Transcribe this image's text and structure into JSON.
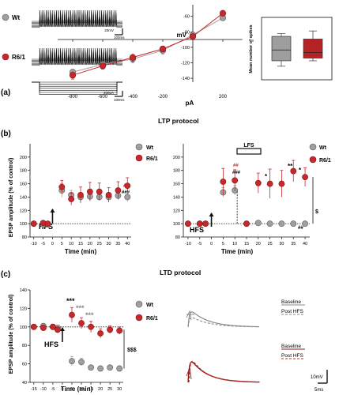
{
  "panels": {
    "a": "(a)",
    "b": "(b)",
    "c": "(c)"
  },
  "section_titles": {
    "ltp": "LTP protocol",
    "ltd": "LTD protocol"
  },
  "legend": {
    "wt": "Wt",
    "r61": "R6/1"
  },
  "colors": {
    "wt": "#a0a0a0",
    "r61": "#c8272b",
    "axis": "#111111",
    "dark_red": "#8e1a1a"
  },
  "traces": {
    "scale_top_v": "20mV",
    "scale_top_t": "100ms",
    "scale_bottom_i": "200pA",
    "scale_bottom_t": "100ms",
    "ltd_scale_v": "10mV",
    "ltd_scale_t": "5ms",
    "legend_baseline": "Baseline",
    "legend_post": "Post HFS"
  },
  "markers": {
    "hfs": "HFS",
    "lfs": "LFS"
  },
  "chart_data": [
    {
      "id": "iv",
      "type": "line",
      "xlabel": "pA",
      "ylabel": "mV",
      "xlim": [
        -900,
        300
      ],
      "ylim": [
        -145,
        -45
      ],
      "xticks": [
        -800,
        -600,
        -400,
        -200,
        200,
        400
      ],
      "yticks": [
        -140,
        -120,
        -100,
        -80,
        -60
      ],
      "series": [
        {
          "name": "Wt",
          "x": [
            -800,
            -600,
            -400,
            -200,
            0,
            200
          ],
          "y": [
            -132,
            -122,
            -115,
            -104,
            -84,
            -62
          ],
          "err": [
            4,
            5,
            5,
            5,
            3,
            2
          ]
        },
        {
          "name": "R6/1",
          "x": [
            -800,
            -600,
            -400,
            -200,
            0,
            200
          ],
          "y": [
            -136,
            -124,
            -113,
            -102,
            -86,
            -56
          ],
          "err": [
            5,
            4,
            5,
            4,
            3,
            2
          ]
        }
      ]
    },
    {
      "id": "spikes",
      "type": "box",
      "ylabel": "Mean number of spikes",
      "categories": [
        "Wt",
        "R6/1"
      ],
      "series": [
        {
          "name": "Wt",
          "min": 30,
          "q1": 32,
          "median": 36,
          "q3": 41,
          "max": 42
        },
        {
          "name": "R6/1",
          "min": 32,
          "q1": 33,
          "median": 35,
          "q3": 40,
          "max": 43
        }
      ],
      "ylim": [
        25,
        48
      ]
    },
    {
      "id": "ltp_hfs",
      "type": "scatter",
      "ylabel": "EPSP amplitude (% of control)",
      "xlabel": "Time (min)",
      "xlim": [
        -12,
        42
      ],
      "ylim": [
        80,
        220
      ],
      "xticks": [
        -10,
        -5,
        0,
        5,
        10,
        15,
        20,
        25,
        30,
        35,
        40
      ],
      "yticks": [
        80,
        100,
        120,
        140,
        160,
        180,
        200
      ],
      "hline": 100,
      "series": [
        {
          "name": "Wt",
          "x": [
            -10,
            -5,
            -2.5,
            5,
            10,
            15,
            20,
            25,
            30,
            35,
            40
          ],
          "y": [
            100,
            99,
            99,
            150,
            143,
            140,
            141,
            140,
            140,
            142,
            140
          ],
          "err": [
            2,
            2,
            2,
            10,
            7,
            6,
            6,
            5,
            5,
            6,
            7
          ]
        },
        {
          "name": "R6/1",
          "x": [
            -10,
            -5,
            -2.5,
            5,
            10,
            15,
            20,
            25,
            30,
            35,
            40
          ],
          "y": [
            100,
            101,
            100,
            155,
            137,
            143,
            148,
            148,
            143,
            150,
            157
          ],
          "err": [
            2,
            3,
            2,
            10,
            9,
            12,
            14,
            13,
            11,
            13,
            12
          ]
        }
      ],
      "annotations": [
        "##",
        "###"
      ]
    },
    {
      "id": "ltp_lfs",
      "type": "scatter",
      "xlabel": "Time (min)",
      "xlim": [
        -12,
        42
      ],
      "ylim": [
        80,
        220
      ],
      "xticks": [
        -10,
        -5,
        0,
        5,
        10,
        15,
        20,
        25,
        30,
        35,
        40
      ],
      "yticks": [
        80,
        100,
        120,
        140,
        160,
        180,
        200
      ],
      "hline": 100,
      "series": [
        {
          "name": "Wt",
          "x": [
            -10,
            -5,
            -2.5,
            5,
            10,
            15,
            20,
            25,
            30,
            35,
            40
          ],
          "y": [
            100,
            100,
            100,
            147,
            150,
            100,
            101,
            100,
            100,
            100,
            100
          ],
          "err": [
            2,
            2,
            2,
            7,
            7,
            2,
            2,
            2,
            2,
            2,
            2
          ]
        },
        {
          "name": "R6/1",
          "x": [
            -10,
            -5,
            -2.5,
            5,
            10,
            15,
            20,
            25,
            30,
            35,
            40
          ],
          "y": [
            100,
            100,
            100,
            163,
            165,
            100,
            161,
            160,
            160,
            179,
            170
          ],
          "err": [
            2,
            3,
            2,
            20,
            16,
            3,
            15,
            22,
            20,
            16,
            14
          ]
        }
      ],
      "annotations": [
        "##",
        "###",
        "*",
        "**",
        "*",
        "##",
        "$"
      ]
    },
    {
      "id": "ltd",
      "type": "scatter",
      "ylabel": "EPSP amplitude (% of control)",
      "xlabel": "Time (min)",
      "xlim": [
        -17,
        32
      ],
      "ylim": [
        40,
        140
      ],
      "xticks": [
        -15,
        -10,
        -5,
        0,
        5,
        10,
        15,
        20,
        25,
        30
      ],
      "yticks": [
        40,
        60,
        80,
        100,
        120,
        140
      ],
      "hline": 100,
      "series": [
        {
          "name": "Wt",
          "x": [
            -15,
            -10,
            -5,
            -2.5,
            5,
            10,
            15,
            20,
            25,
            30
          ],
          "y": [
            100,
            101,
            100,
            99,
            63,
            62,
            56,
            55,
            56,
            55
          ],
          "err": [
            2,
            2,
            2,
            2,
            5,
            4,
            2,
            2,
            2,
            2
          ]
        },
        {
          "name": "R6/1",
          "x": [
            -15,
            -10,
            -5,
            -2.5,
            5,
            10,
            15,
            20,
            25,
            30
          ],
          "y": [
            100,
            99,
            100,
            97,
            113,
            104,
            100,
            93,
            97,
            96
          ],
          "err": [
            2,
            3,
            3,
            3,
            8,
            6,
            6,
            5,
            4,
            4
          ]
        }
      ],
      "annotations": [
        "***",
        "***",
        "***",
        "$$$"
      ]
    }
  ]
}
